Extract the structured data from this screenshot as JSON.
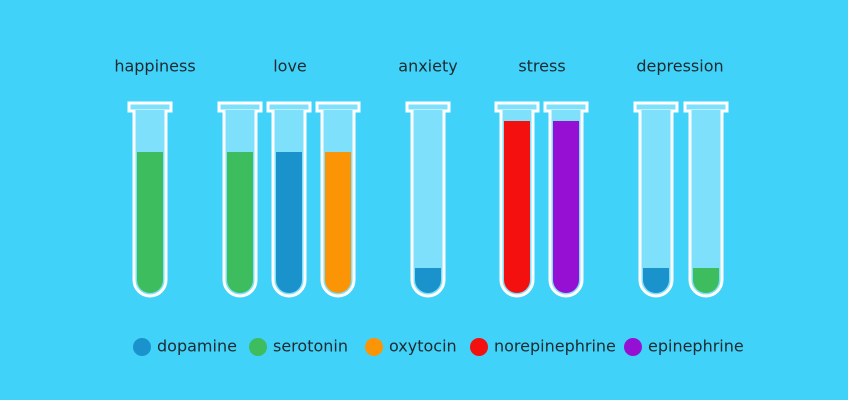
{
  "groups": [
    {
      "label": "happiness"
    },
    {
      "label": "love"
    },
    {
      "label": "anxiety"
    },
    {
      "label": "stress"
    },
    {
      "label": "depression"
    }
  ],
  "legend": [
    {
      "label": "dopamine",
      "color": "#1a93cc"
    },
    {
      "label": "serotonin",
      "color": "#3dbd5d"
    },
    {
      "label": "oxytocin",
      "color": "#fb9506"
    },
    {
      "label": "norepinephrine",
      "color": "#f51010"
    },
    {
      "label": "epinephrine",
      "color": "#9610d4"
    }
  ]
}
